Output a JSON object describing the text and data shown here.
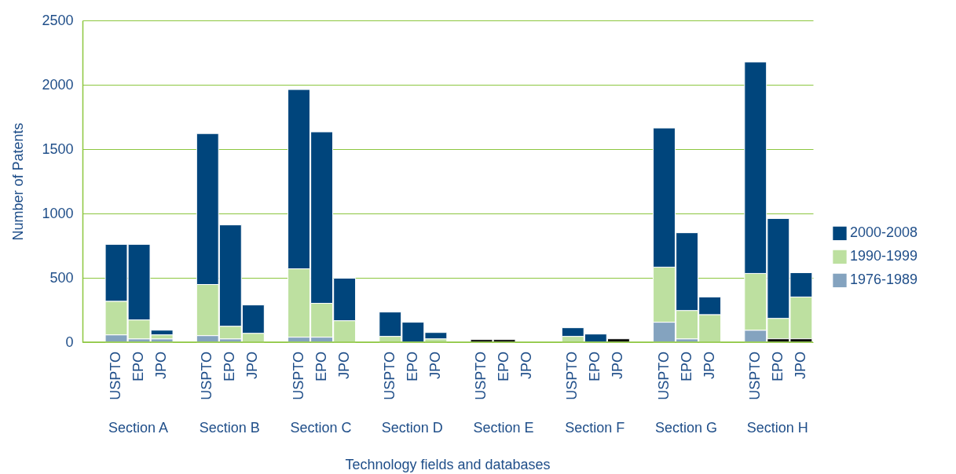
{
  "chart_data": {
    "type": "bar",
    "stacked": true,
    "ylabel": "Number of Patents",
    "xlabel": "Technology fields and databases",
    "categories": [
      "USPTO",
      "EPO",
      "JPO",
      "USPTO",
      "EPO",
      "JPO",
      "USPTO",
      "EPO",
      "JPO",
      "USPTO",
      "EPO",
      "JPO",
      "USPTO",
      "EPO",
      "JPO",
      "USPTO",
      "EPO",
      "JPO",
      "USPTO",
      "EPO",
      "JPO",
      "USPTO",
      "EPO",
      "JPO"
    ],
    "annotations": [
      "Section A",
      "Section B",
      "Section C",
      "Section D",
      "Section E",
      "Section F",
      "Section G",
      "Section H"
    ],
    "series": [
      {
        "color": "#000000",
        "values": [
          0,
          0,
          0,
          0,
          0,
          0,
          0,
          0,
          0,
          0,
          0,
          0,
          20,
          20,
          0,
          0,
          0,
          26,
          0,
          0,
          0,
          0,
          26,
          26
        ]
      },
      {
        "name": "1976-1989",
        "color": "#84a3bf",
        "values": [
          57,
          26,
          26,
          51,
          26,
          0,
          39,
          39,
          0,
          0,
          0,
          0,
          0,
          0,
          0,
          0,
          0,
          0,
          155,
          26,
          0,
          93,
          0,
          0
        ]
      },
      {
        "name": "1990-1999",
        "color": "#bde0a0",
        "values": [
          261,
          147,
          31,
          397,
          98,
          69,
          531,
          263,
          167,
          45,
          0,
          26,
          0,
          0,
          0,
          45,
          0,
          0,
          428,
          220,
          214,
          441,
          159,
          325
        ]
      },
      {
        "name": "2000-2008",
        "color": "#00457c",
        "values": [
          442,
          587,
          36,
          1173,
          787,
          220,
          1393,
          1332,
          330,
          189,
          155,
          49,
          0,
          0,
          0,
          67,
          63,
          0,
          1081,
          604,
          137,
          1643,
          776,
          189
        ]
      }
    ],
    "ylim": [
      0,
      2500
    ],
    "yticks": [
      0,
      500,
      1000,
      1500,
      2000,
      2500
    ],
    "grid": "y",
    "legend": "right"
  }
}
